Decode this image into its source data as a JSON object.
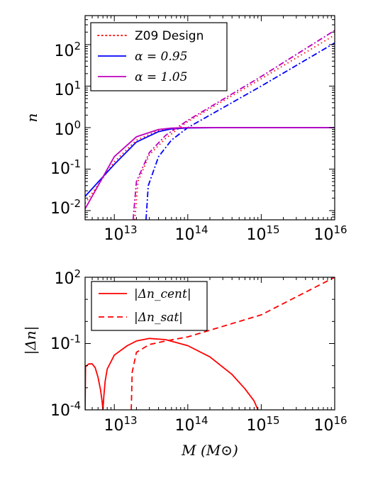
{
  "chart_data": [
    {
      "type": "line",
      "ylabel": "n",
      "xscale": "log",
      "yscale": "log",
      "xlim": [
        4000000000000.0,
        1e+16
      ],
      "ylim": [
        0.006,
        500
      ],
      "x_ticks": [
        "10^13",
        "10^14",
        "10^15",
        "10^16"
      ],
      "y_ticks": [
        "10^-2",
        "10^-1",
        "10^0",
        "10^1",
        "10^2"
      ],
      "legend_position": "top-left",
      "legend": [
        {
          "label": "Z09 Design",
          "style": "dotted",
          "color": "#ff0000"
        },
        {
          "label": "α = 0.95",
          "style": "solid",
          "color": "#0000ff"
        },
        {
          "label": "α = 1.05",
          "style": "solid",
          "color": "#bf00bf"
        }
      ],
      "series": [
        {
          "name": "Z09 Design",
          "component": "central",
          "color": "#ff0000",
          "style": "dotted",
          "x": [
            4000000000000.0,
            10000000000000.0,
            20000000000000.0,
            40000000000000.0,
            60000000000000.0,
            100000000000000.0,
            300000000000000.0,
            1e+16
          ],
          "y": [
            0.015,
            0.15,
            0.5,
            0.85,
            0.95,
            1.0,
            1.0,
            1.0
          ]
        },
        {
          "name": "Z09 Design",
          "component": "satellite",
          "color": "#ff0000",
          "style": "dotted",
          "x": [
            19000000000000.0,
            21000000000000.0,
            30000000000000.0,
            50000000000000.0,
            100000000000000.0,
            1000000000000000.0,
            1e+16
          ],
          "y": [
            0.006,
            0.05,
            0.22,
            0.55,
            1.4,
            15,
            170
          ]
        },
        {
          "name": "α = 0.95",
          "component": "central",
          "color": "#0000ff",
          "style": "solid",
          "x": [
            4000000000000.0,
            10000000000000.0,
            20000000000000.0,
            40000000000000.0,
            60000000000000.0,
            100000000000000.0,
            300000000000000.0,
            1e+16
          ],
          "y": [
            0.022,
            0.13,
            0.45,
            0.8,
            0.93,
            0.98,
            1.0,
            1.0
          ]
        },
        {
          "name": "α = 0.95",
          "component": "satellite",
          "color": "#0000ff",
          "style": "dashdot",
          "x": [
            27000000000000.0,
            29000000000000.0,
            40000000000000.0,
            60000000000000.0,
            100000000000000.0,
            1000000000000000.0,
            1e+16
          ],
          "y": [
            0.006,
            0.04,
            0.2,
            0.5,
            1.0,
            10,
            110
          ]
        },
        {
          "name": "α = 1.05",
          "component": "central",
          "color": "#bf00bf",
          "style": "solid",
          "x": [
            4000000000000.0,
            10000000000000.0,
            20000000000000.0,
            40000000000000.0,
            60000000000000.0,
            100000000000000.0,
            300000000000000.0,
            1e+16
          ],
          "y": [
            0.011,
            0.2,
            0.6,
            0.9,
            0.97,
            1.0,
            1.0,
            1.0
          ]
        },
        {
          "name": "α = 1.05",
          "component": "satellite",
          "color": "#bf00bf",
          "style": "dashdot",
          "x": [
            18000000000000.0,
            20000000000000.0,
            30000000000000.0,
            50000000000000.0,
            100000000000000.0,
            1000000000000000.0,
            1e+16
          ],
          "y": [
            0.006,
            0.05,
            0.25,
            0.65,
            1.5,
            17,
            220
          ]
        }
      ]
    },
    {
      "type": "line",
      "xlabel": "M (M⊙)",
      "ylabel": "|Δn|",
      "xscale": "log",
      "yscale": "log",
      "xlim": [
        4000000000000.0,
        1e+16
      ],
      "ylim": [
        0.0001,
        100
      ],
      "x_ticks": [
        "10^13",
        "10^14",
        "10^15",
        "10^16"
      ],
      "y_ticks": [
        "10^-4",
        "10^-1",
        "10^2"
      ],
      "legend_position": "top-left",
      "legend": [
        {
          "label": "|Δn_cent|",
          "style": "solid",
          "color": "#ff0000"
        },
        {
          "label": "|Δn_sat|",
          "style": "dashed",
          "color": "#ff0000"
        }
      ],
      "series": [
        {
          "name": "|Δn_cent|",
          "color": "#ff0000",
          "style": "solid",
          "x": [
            4000000000000.0,
            4050000000000.0,
            4500000000000.0,
            5000000000000.0,
            5500000000000.0,
            6000000000000.0,
            6500000000000.0,
            6800000000000.0,
            7000000000000.0,
            7200000000000.0,
            7500000000000.0,
            8000000000000.0,
            10000000000000.0,
            15000000000000.0,
            20000000000000.0,
            30000000000000.0,
            50000000000000.0,
            100000000000000.0,
            200000000000000.0,
            400000000000000.0,
            600000000000000.0,
            800000000000000.0,
            900000000000000.0
          ],
          "y": [
            0.0001,
            0.009,
            0.012,
            0.012,
            0.008,
            0.003,
            0.0008,
            0.00025,
            0.0001,
            0.0004,
            0.002,
            0.007,
            0.03,
            0.08,
            0.13,
            0.17,
            0.15,
            0.08,
            0.025,
            0.004,
            0.0009,
            0.00025,
            0.0001
          ]
        },
        {
          "name": "|Δn_sat|",
          "color": "#ff0000",
          "style": "dashed",
          "x": [
            17000000000000.0,
            17500000000000.0,
            20000000000000.0,
            30000000000000.0,
            50000000000000.0,
            100000000000000.0,
            1000000000000000.0,
            1e+16
          ],
          "y": [
            0.0001,
            0.005,
            0.04,
            0.09,
            0.13,
            0.2,
            2,
            100
          ]
        }
      ]
    }
  ]
}
